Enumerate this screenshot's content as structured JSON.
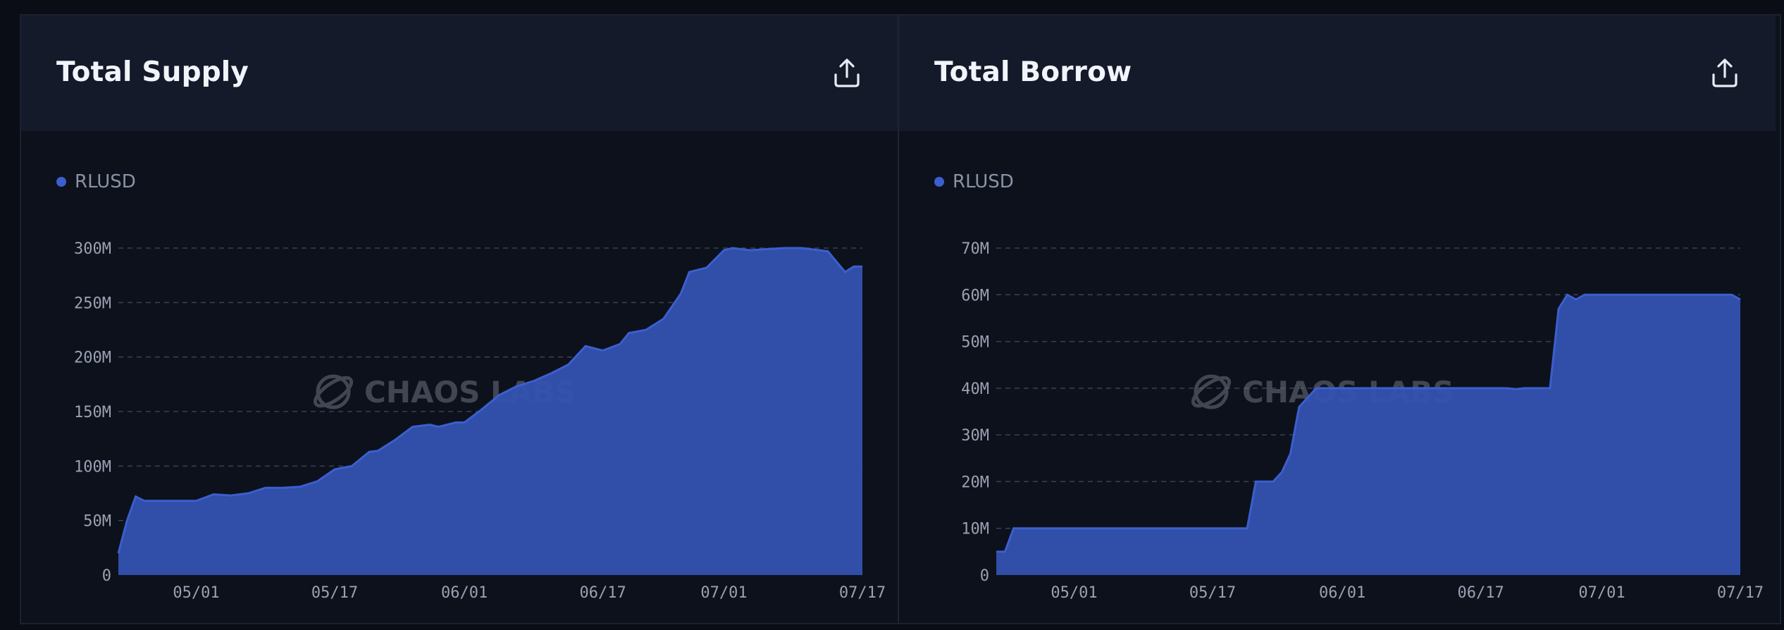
{
  "colors": {
    "page_background": "#0a0d15",
    "panel_header": "#141a29",
    "panel_body": "#0d111b",
    "series": "#3b5fce",
    "series_fill": "#3452b0",
    "grid": "#3a4152",
    "tick_text": "#9aa1b2",
    "title": "#f1f4fa"
  },
  "watermark": "CHAOS LABS",
  "panels": [
    {
      "title": "Total Supply",
      "export_icon": "share-upload-icon",
      "legend": "RLUSD"
    },
    {
      "title": "Total Borrow",
      "export_icon": "share-upload-icon",
      "legend": "RLUSD"
    }
  ],
  "chart_data": [
    {
      "type": "area",
      "title": "Total Supply",
      "series_name": "RLUSD",
      "x_ticks": [
        "05/01",
        "05/17",
        "06/01",
        "06/17",
        "07/01",
        "07/17"
      ],
      "y_ticks": [
        "0",
        "50M",
        "100M",
        "150M",
        "200M",
        "250M",
        "300M"
      ],
      "ylim": [
        0,
        300000000
      ],
      "grid": true,
      "legend_position": "top-left",
      "x": [
        "04/22",
        "04/23",
        "04/24",
        "04/25",
        "04/26",
        "04/28",
        "05/01",
        "05/03",
        "05/05",
        "05/07",
        "05/09",
        "05/11",
        "05/13",
        "05/15",
        "05/17",
        "05/19",
        "05/21",
        "05/22",
        "05/24",
        "05/26",
        "05/28",
        "05/29",
        "05/31",
        "06/01",
        "06/03",
        "06/05",
        "06/07",
        "06/09",
        "06/11",
        "06/13",
        "06/15",
        "06/17",
        "06/19",
        "06/20",
        "06/22",
        "06/24",
        "06/26",
        "06/27",
        "06/29",
        "07/01",
        "07/02",
        "07/04",
        "07/06",
        "07/08",
        "07/10",
        "07/12",
        "07/13",
        "07/15",
        "07/16",
        "07/17"
      ],
      "values": [
        20000000,
        50000000,
        72000000,
        68000000,
        68000000,
        68000000,
        68000000,
        74000000,
        73000000,
        75000000,
        80000000,
        80000000,
        81000000,
        86000000,
        97000000,
        100000000,
        113000000,
        114000000,
        124000000,
        136000000,
        138000000,
        136000000,
        140000000,
        140000000,
        152000000,
        165000000,
        173000000,
        178000000,
        185000000,
        193000000,
        210000000,
        206000000,
        212000000,
        222000000,
        225000000,
        235000000,
        258000000,
        278000000,
        282000000,
        298000000,
        300000000,
        298000000,
        299000000,
        300000000,
        300000000,
        298000000,
        297000000,
        278000000,
        283000000,
        283000000
      ]
    },
    {
      "type": "area",
      "title": "Total Borrow",
      "series_name": "RLUSD",
      "x_ticks": [
        "05/01",
        "05/17",
        "06/01",
        "06/17",
        "07/01",
        "07/17"
      ],
      "y_ticks": [
        "0",
        "10M",
        "20M",
        "30M",
        "40M",
        "50M",
        "60M",
        "70M"
      ],
      "ylim": [
        0,
        70000000
      ],
      "grid": true,
      "legend_position": "top-left",
      "x": [
        "04/22",
        "04/23",
        "04/24",
        "04/27",
        "05/01",
        "05/05",
        "05/10",
        "05/15",
        "05/20",
        "05/21",
        "05/22",
        "05/23",
        "05/24",
        "05/25",
        "05/26",
        "05/27",
        "05/28",
        "05/29",
        "06/01",
        "06/05",
        "06/10",
        "06/15",
        "06/19",
        "06/20",
        "06/21",
        "06/22",
        "06/23",
        "06/25",
        "06/26",
        "06/27",
        "06/28",
        "06/29",
        "07/01",
        "07/05",
        "07/10",
        "07/15",
        "07/16",
        "07/17"
      ],
      "values": [
        5000000,
        5000000,
        10000000,
        10000000,
        10000000,
        10000000,
        10000000,
        10000000,
        10000000,
        10000000,
        20000000,
        20000000,
        20000000,
        22000000,
        26000000,
        36000000,
        38000000,
        40000000,
        40000000,
        40000000,
        40000000,
        40000000,
        40000000,
        40000000,
        39800000,
        40000000,
        40000000,
        40000000,
        57000000,
        60000000,
        59000000,
        60000000,
        60000000,
        60000000,
        60000000,
        60000000,
        60000000,
        59000000
      ]
    }
  ]
}
